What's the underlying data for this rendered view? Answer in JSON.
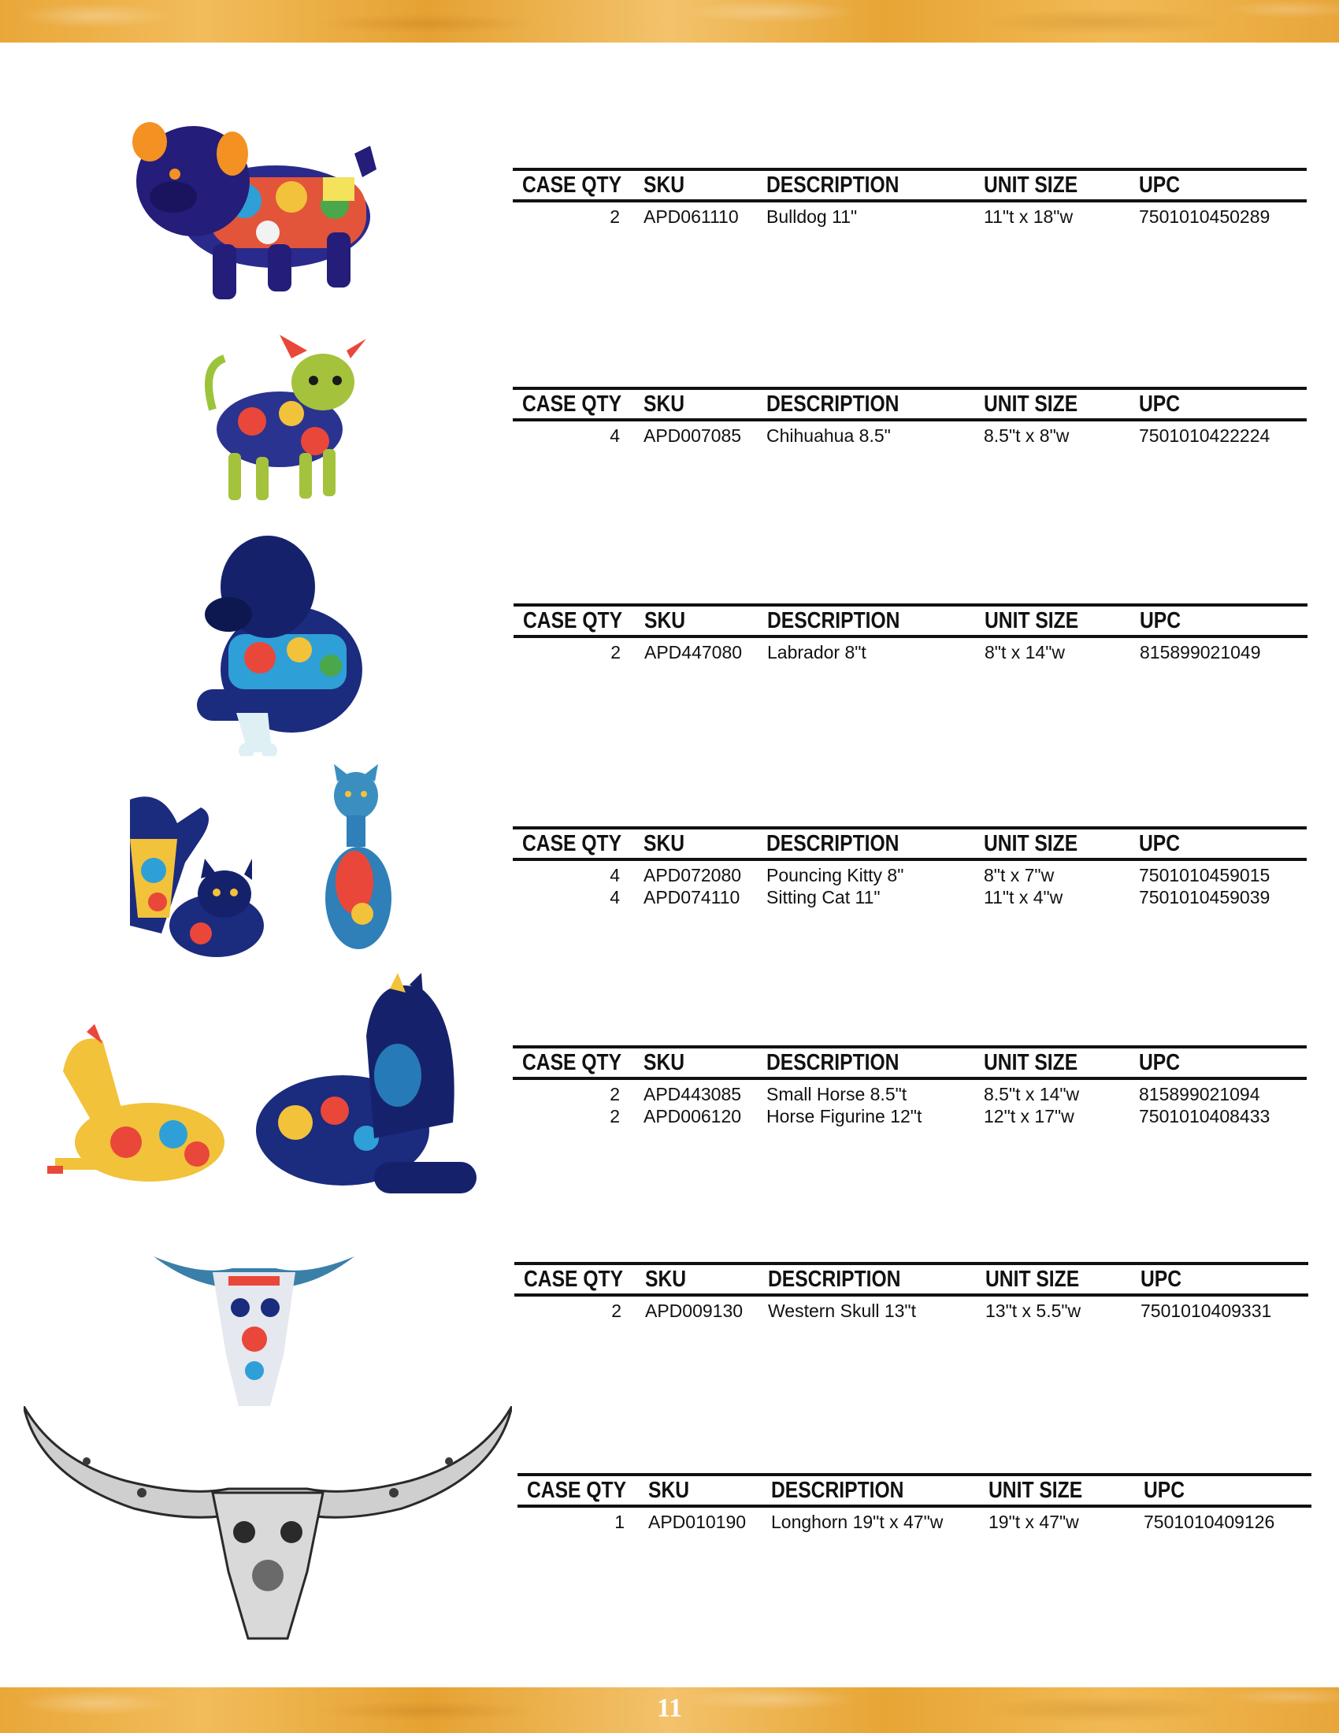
{
  "page": {
    "number": "11"
  },
  "headers": {
    "case_qty": "CASE QTY",
    "sku": "SKU",
    "description": "DESCRIPTION",
    "unit_size": "UNIT SIZE",
    "upc": "UPC"
  },
  "tables": [
    {
      "rows": [
        {
          "case_qty": "2",
          "sku": "APD061110",
          "description": "Bulldog 11\"",
          "unit_size": "11\"t x 18\"w",
          "upc": "7501010450289"
        }
      ]
    },
    {
      "rows": [
        {
          "case_qty": "4",
          "sku": "APD007085",
          "description": "Chihuahua 8.5\"",
          "unit_size": "8.5\"t x 8\"w",
          "upc": "7501010422224"
        }
      ]
    },
    {
      "rows": [
        {
          "case_qty": "2",
          "sku": "APD447080",
          "description": "Labrador 8\"t",
          "unit_size": "8\"t x 14\"w",
          "upc": "815899021049"
        }
      ]
    },
    {
      "rows": [
        {
          "case_qty": "4",
          "sku": "APD072080",
          "description": "Pouncing Kitty 8\"",
          "unit_size": "8\"t x 7\"w",
          "upc": "7501010459015"
        },
        {
          "case_qty": "4",
          "sku": "APD074110",
          "description": "Sitting Cat 11\"",
          "unit_size": "11\"t x 4\"w",
          "upc": "7501010459039"
        }
      ]
    },
    {
      "rows": [
        {
          "case_qty": "2",
          "sku": "APD443085",
          "description": "Small Horse 8.5\"t",
          "unit_size": "8.5\"t x 14\"w",
          "upc": "815899021094"
        },
        {
          "case_qty": "2",
          "sku": "APD006120",
          "description": "Horse Figurine 12\"t",
          "unit_size": "12\"t x 17\"w",
          "upc": "7501010408433"
        }
      ]
    },
    {
      "rows": [
        {
          "case_qty": "2",
          "sku": "APD009130",
          "description": "Western Skull 13\"t",
          "unit_size": "13\"t x 5.5\"w",
          "upc": "7501010409331"
        }
      ]
    },
    {
      "rows": [
        {
          "case_qty": "1",
          "sku": "APD010190",
          "description": "Longhorn 19\"t x 47\"w",
          "unit_size": "19\"t x 47\"w",
          "upc": "7501010409126"
        }
      ]
    }
  ],
  "colors": {
    "band": "#e9a739",
    "cobalt": "#1d2a7a",
    "text": "#111111"
  },
  "illustrations": [
    "bulldog-figurine",
    "chihuahua-figurine",
    "labrador-figurine",
    "pouncing-kitty-figurine",
    "sitting-cat-figurine",
    "small-horse-figurine",
    "horse-figurine",
    "western-skull-figurine",
    "longhorn-skull-figurine"
  ]
}
